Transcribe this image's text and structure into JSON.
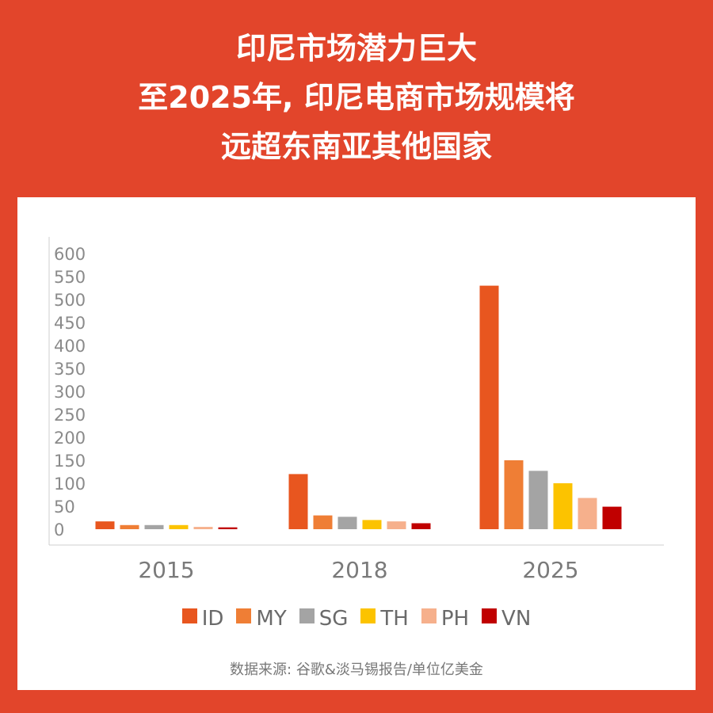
{
  "header": {
    "title_lines": [
      "印尼市场潜力巨大",
      "至2025年, 印尼电商市场规模将",
      "远超东南亚其他国家"
    ]
  },
  "source": "数据来源: 谷歌&淡马锡报告/单位亿美金",
  "chart_data": {
    "type": "bar",
    "categories": [
      "2015",
      "2018",
      "2025"
    ],
    "series": [
      {
        "name": "ID",
        "color": "#e8561f",
        "values": [
          17,
          120,
          530
        ]
      },
      {
        "name": "MY",
        "color": "#ef7e35",
        "values": [
          9,
          30,
          150
        ]
      },
      {
        "name": "SG",
        "color": "#a4a4a4",
        "values": [
          9,
          27,
          127
        ]
      },
      {
        "name": "TH",
        "color": "#fcc300",
        "values": [
          9,
          20,
          100
        ]
      },
      {
        "name": "PH",
        "color": "#f6b08c",
        "values": [
          5,
          17,
          68
        ]
      },
      {
        "name": "VN",
        "color": "#c00000",
        "values": [
          4,
          13,
          49
        ]
      }
    ],
    "yticks": [
      0,
      50,
      100,
      150,
      200,
      250,
      300,
      350,
      400,
      450,
      500,
      550,
      600
    ],
    "ylim": [
      0,
      600
    ],
    "grid": false,
    "legend_position": "bottom"
  }
}
